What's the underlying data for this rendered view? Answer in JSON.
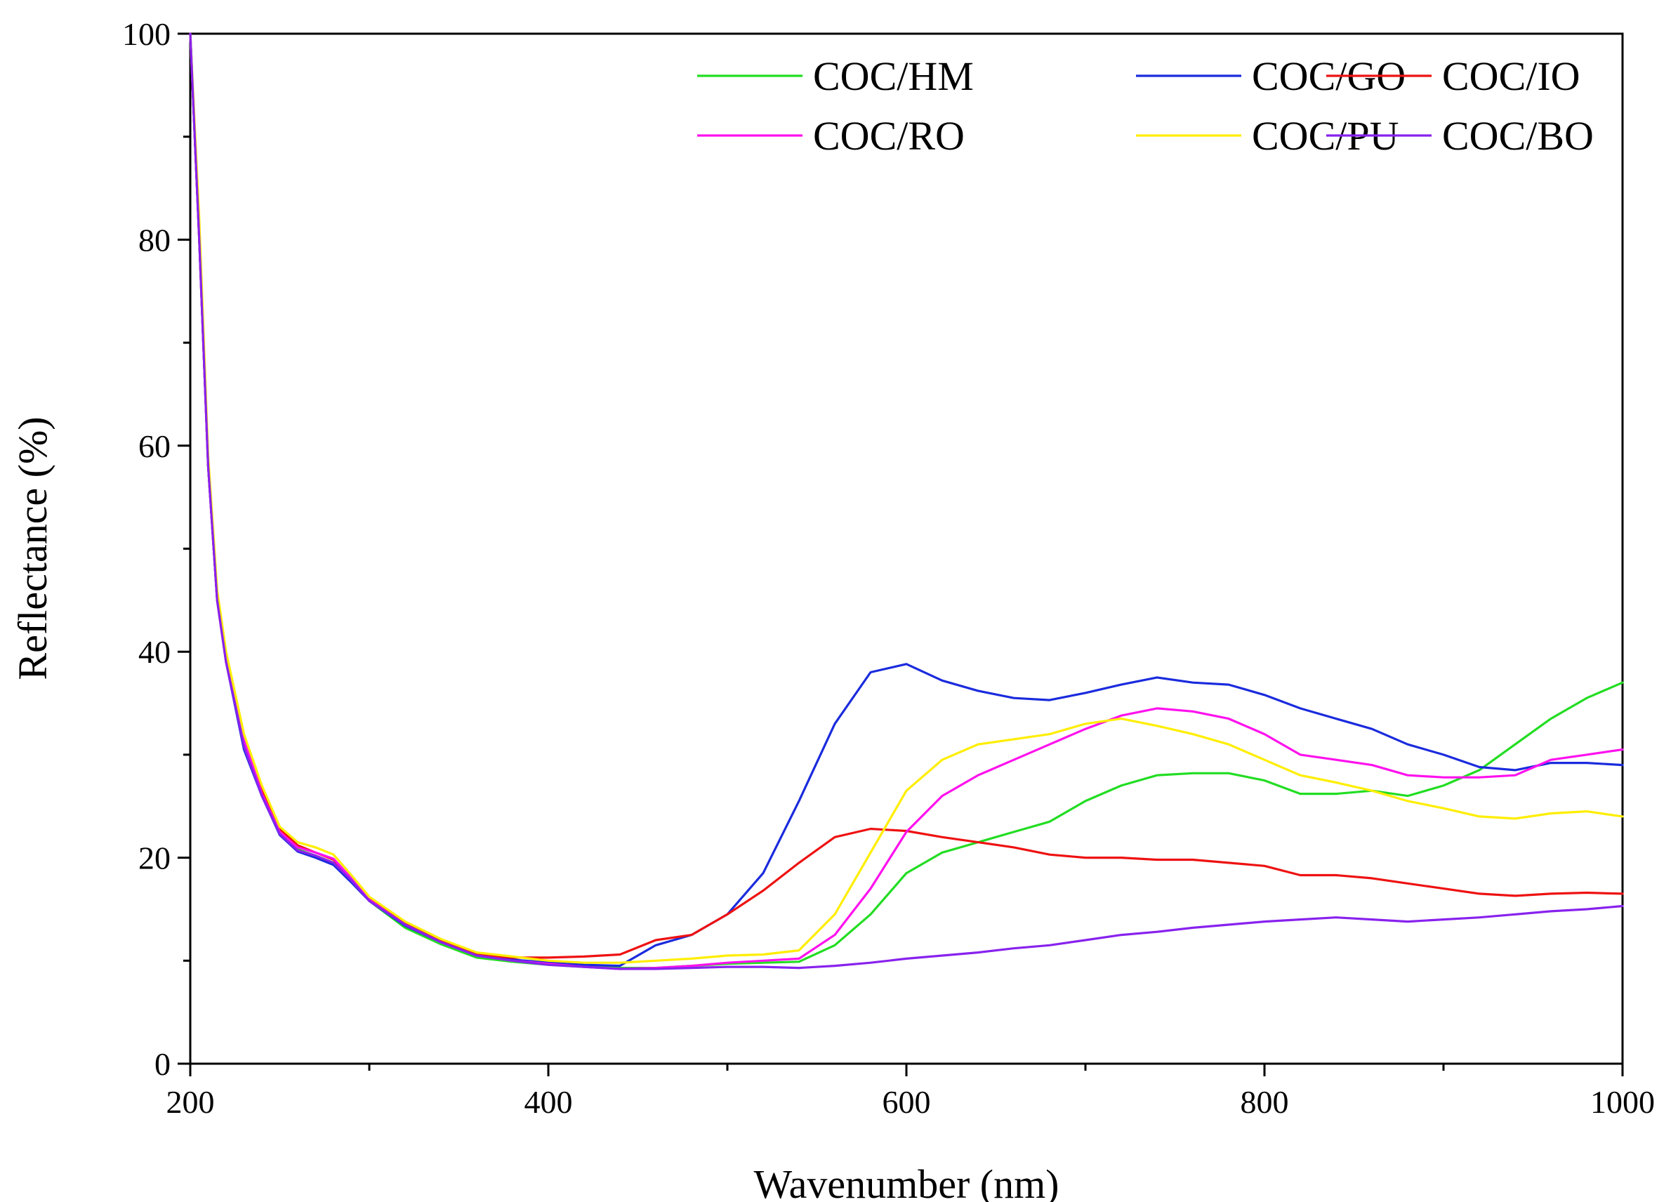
{
  "chart_data": {
    "type": "line",
    "title": "",
    "xlabel": "Wavenumber (nm)",
    "ylabel": "Reflectance (%)",
    "xlim": [
      200,
      1000
    ],
    "ylim": [
      0,
      100
    ],
    "x_ticks": [
      200,
      400,
      600,
      800,
      1000
    ],
    "y_ticks": [
      0,
      20,
      40,
      60,
      80,
      100
    ],
    "grid": false,
    "legend_position": "top-right",
    "x": [
      200,
      205,
      210,
      215,
      220,
      230,
      240,
      250,
      260,
      270,
      280,
      290,
      300,
      320,
      340,
      360,
      380,
      400,
      420,
      440,
      460,
      480,
      500,
      520,
      540,
      560,
      580,
      600,
      620,
      640,
      660,
      680,
      700,
      720,
      740,
      760,
      780,
      800,
      820,
      840,
      860,
      880,
      900,
      920,
      940,
      960,
      980,
      1000
    ],
    "series": [
      {
        "name": "COC/HM",
        "color": "#22dd22",
        "values": [
          100,
          80,
          58,
          45,
          39,
          31,
          26,
          22.5,
          20.8,
          20.2,
          19.5,
          17.8,
          15.8,
          13.2,
          11.6,
          10.3,
          9.9,
          9.6,
          9.4,
          9.3,
          9.3,
          9.5,
          9.7,
          9.8,
          9.9,
          11.5,
          14.5,
          18.5,
          20.5,
          21.5,
          22.5,
          23.5,
          25.5,
          27,
          28,
          28.2,
          28.2,
          27.5,
          26.2,
          26.2,
          26.5,
          26,
          27,
          28.5,
          31,
          33.5,
          35.5,
          37
        ]
      },
      {
        "name": "COC/GO",
        "color": "#1a2bdd",
        "values": [
          100,
          80,
          58,
          45,
          39,
          30.5,
          26,
          22.2,
          20.6,
          20.0,
          19.3,
          17.6,
          15.8,
          13.4,
          11.8,
          10.5,
          10.1,
          9.8,
          9.6,
          9.5,
          11.5,
          12.5,
          14.5,
          18.5,
          25.5,
          33,
          38,
          38.8,
          37.2,
          36.2,
          35.5,
          35.3,
          36.0,
          36.8,
          37.5,
          37.0,
          36.8,
          35.8,
          34.5,
          33.5,
          32.5,
          31.0,
          30.0,
          28.8,
          28.5,
          29.2,
          29.2,
          29.0
        ]
      },
      {
        "name": "COC/IO",
        "color": "#ee1111",
        "values": [
          100,
          80,
          58,
          45,
          39,
          31,
          26.5,
          22.8,
          21.2,
          20.5,
          19.8,
          18.0,
          16.0,
          13.6,
          12.0,
          10.6,
          10.3,
          10.3,
          10.4,
          10.6,
          12.0,
          12.5,
          14.5,
          16.8,
          19.5,
          22.0,
          22.8,
          22.6,
          22.0,
          21.5,
          21.0,
          20.3,
          20.0,
          20.0,
          19.8,
          19.8,
          19.5,
          19.2,
          18.3,
          18.3,
          18.0,
          17.5,
          17.0,
          16.5,
          16.3,
          16.5,
          16.6,
          16.5
        ]
      },
      {
        "name": "COC/RO",
        "color": "#ff11ee",
        "values": [
          100,
          80,
          58,
          45,
          39,
          31.5,
          26.2,
          22.5,
          21.0,
          20.5,
          19.9,
          18.0,
          15.9,
          13.5,
          11.8,
          10.5,
          10.0,
          9.7,
          9.4,
          9.2,
          9.3,
          9.5,
          9.8,
          10.0,
          10.2,
          12.5,
          17.0,
          22.5,
          26.0,
          28.0,
          29.5,
          31.0,
          32.5,
          33.8,
          34.5,
          34.2,
          33.5,
          32.0,
          30.0,
          29.5,
          29.0,
          28.0,
          27.8,
          27.8,
          28.0,
          29.5,
          30.0,
          30.5
        ]
      },
      {
        "name": "COC/PU",
        "color": "#ffee00",
        "values": [
          100,
          82,
          59,
          46,
          40,
          32,
          27,
          23.0,
          21.5,
          21.0,
          20.3,
          18.3,
          16.2,
          13.8,
          12.1,
          10.8,
          10.4,
          10.0,
          9.8,
          9.8,
          10.0,
          10.2,
          10.5,
          10.6,
          11.0,
          14.5,
          20.5,
          26.5,
          29.5,
          31.0,
          31.5,
          32.0,
          33.0,
          33.5,
          32.8,
          32.0,
          31.0,
          29.5,
          28.0,
          27.3,
          26.5,
          25.5,
          24.8,
          24.0,
          23.8,
          24.3,
          24.5,
          24.0
        ]
      },
      {
        "name": "COC/BO",
        "color": "#8822ee",
        "values": [
          100,
          80,
          58,
          45,
          39,
          30.8,
          26.0,
          22.3,
          20.7,
          20.2,
          19.5,
          17.8,
          15.8,
          13.5,
          11.8,
          10.5,
          10.0,
          9.6,
          9.4,
          9.2,
          9.2,
          9.3,
          9.4,
          9.4,
          9.3,
          9.5,
          9.8,
          10.2,
          10.5,
          10.8,
          11.2,
          11.5,
          12.0,
          12.5,
          12.8,
          13.2,
          13.5,
          13.8,
          14.0,
          14.2,
          14.0,
          13.8,
          14.0,
          14.2,
          14.5,
          14.8,
          15.0,
          15.3
        ]
      }
    ]
  }
}
